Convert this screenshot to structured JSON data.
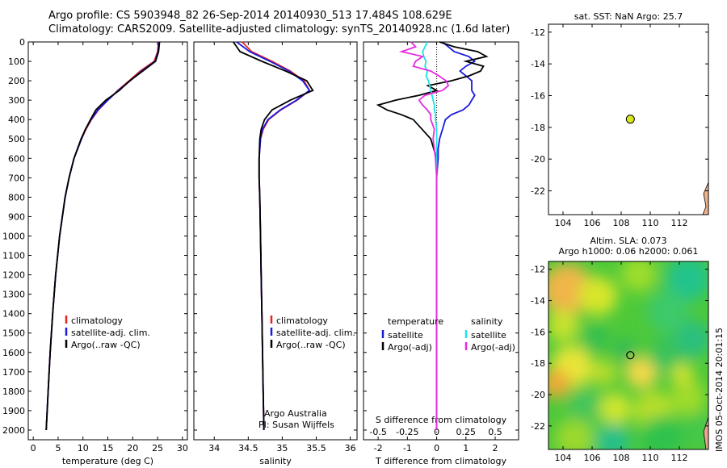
{
  "header": {
    "title_line1": "Argo profile: CS 5903948_82 26-Sep-2014 20140930_513 17.484S 108.629E",
    "title_line2": "Climatology: CARS2009. Satellite-adjusted climatology: synTS_20140928.nc (1.6d later)"
  },
  "footer_stamp": "IMOS 05-Oct-2014 20:01:15",
  "colors": {
    "climatology": "#e8201b",
    "satellite": "#1a1adf",
    "argo": "#000000",
    "satellite_s": "#19e3e8",
    "argo_s": "#e62be0",
    "marker": "#d8e81c"
  },
  "chart_data": [
    {
      "type": "line",
      "xlabel": "temperature (deg C)",
      "ylabel": "",
      "xlim": [
        -1,
        31
      ],
      "ylim": [
        2050,
        0
      ],
      "xticks": [
        0,
        5,
        10,
        15,
        20,
        25,
        30
      ],
      "yticks": [
        0,
        100,
        200,
        300,
        400,
        500,
        600,
        700,
        800,
        900,
        1000,
        1100,
        1200,
        1300,
        1400,
        1500,
        1600,
        1700,
        1800,
        1900,
        2000
      ],
      "legend": [
        "climatology",
        "satellite-adj. clim.",
        "Argo(..raw -QC)"
      ],
      "y": [
        0,
        50,
        100,
        150,
        200,
        250,
        300,
        350,
        400,
        450,
        500,
        600,
        700,
        800,
        1000,
        1200,
        1400,
        1600,
        1800,
        2000
      ],
      "series": [
        {
          "name": "climatology",
          "values": [
            25.2,
            25.0,
            24.3,
            21.5,
            19.3,
            17.0,
            15.0,
            13.1,
            11.7,
            10.6,
            9.7,
            8.2,
            7.2,
            6.4,
            5.3,
            4.5,
            3.9,
            3.4,
            3.0,
            2.6
          ]
        },
        {
          "name": "satellite-adj. clim.",
          "values": [
            25.3,
            25.1,
            24.5,
            21.8,
            19.5,
            17.1,
            15.0,
            13.0,
            11.6,
            10.5,
            9.7,
            8.2,
            7.2,
            6.4,
            5.3,
            4.5,
            3.9,
            3.4,
            3.0,
            2.6
          ]
        },
        {
          "name": "Argo(..raw -QC)",
          "values": [
            25.4,
            25.2,
            24.6,
            22.0,
            19.4,
            17.3,
            14.6,
            12.6,
            11.5,
            10.5,
            9.6,
            8.2,
            7.2,
            6.4,
            5.3,
            4.5,
            3.9,
            3.4,
            3.0,
            2.6
          ]
        }
      ]
    },
    {
      "type": "line",
      "xlabel": "salinity",
      "xlim": [
        33.7,
        36.1
      ],
      "ylim": [
        2050,
        0
      ],
      "xticks": [
        34,
        34.5,
        35,
        35.5,
        36
      ],
      "legend": [
        "climatology",
        "satellite-adj. clim.",
        "Argo(..raw -QC)"
      ],
      "annotations": [
        "Argo Australia",
        "PI: Susan Wijffels"
      ],
      "y": [
        0,
        50,
        100,
        150,
        200,
        250,
        300,
        350,
        400,
        450,
        500,
        600,
        700,
        800,
        1000,
        1200,
        1400,
        1600,
        1800,
        2000
      ],
      "series": [
        {
          "name": "climatology",
          "values": [
            34.41,
            34.55,
            34.85,
            35.12,
            35.32,
            35.4,
            35.22,
            34.98,
            34.8,
            34.72,
            34.68,
            34.66,
            34.66,
            34.67,
            34.68,
            34.69,
            34.7,
            34.71,
            34.72,
            34.73
          ]
        },
        {
          "name": "satellite-adj. clim.",
          "values": [
            34.33,
            34.52,
            34.82,
            35.1,
            35.3,
            35.4,
            35.21,
            34.97,
            34.79,
            34.71,
            34.68,
            34.66,
            34.66,
            34.67,
            34.68,
            34.69,
            34.7,
            34.71,
            34.72,
            34.73
          ]
        },
        {
          "name": "Argo(..raw -QC)",
          "values": [
            34.28,
            34.38,
            34.7,
            35.05,
            35.36,
            35.45,
            35.12,
            34.85,
            34.74,
            34.69,
            34.67,
            34.66,
            34.66,
            34.67,
            34.68,
            34.69,
            34.7,
            34.71,
            34.72,
            34.73
          ]
        }
      ]
    },
    {
      "type": "line",
      "xlabel": "T difference from climatology",
      "xlabel_top": "S difference from climatology",
      "xlim": [
        -2.5,
        2.8
      ],
      "ylim": [
        2050,
        0
      ],
      "xticks": [
        -2,
        -1,
        0,
        1,
        2
      ],
      "xticks_top": [
        -0.5,
        -0.25,
        0,
        0.25,
        0.5
      ],
      "legend_groups": [
        {
          "title": "temperature",
          "items": [
            "satellite",
            "Argo(-adj)"
          ]
        },
        {
          "title": "salinity",
          "items": [
            "satellite",
            "Argo(-adj)"
          ]
        }
      ],
      "y": [
        0,
        25,
        50,
        75,
        100,
        125,
        150,
        175,
        200,
        225,
        250,
        275,
        300,
        325,
        350,
        375,
        400,
        450,
        500,
        550,
        600,
        700,
        800,
        900,
        1000,
        1200,
        1400,
        1600,
        1800,
        2000
      ],
      "series": [
        {
          "name": "temperature satellite",
          "values": [
            0.2,
            0.4,
            0.6,
            1.1,
            1.3,
            1.0,
            0.8,
            1.0,
            1.2,
            1.2,
            1.2,
            1.3,
            1.2,
            1.1,
            0.9,
            0.5,
            0.3,
            0.2,
            0.1,
            0.05,
            0.05,
            0.0,
            0.0,
            0.0,
            0.0,
            0.0,
            0.0,
            0.0,
            0.0,
            0.0
          ]
        },
        {
          "name": "temperature Argo(-adj)",
          "values": [
            0.1,
            0.6,
            1.4,
            1.7,
            1.0,
            1.6,
            1.5,
            1.1,
            0.5,
            -0.3,
            0.0,
            -0.6,
            -1.4,
            -2.0,
            -1.7,
            -1.2,
            -0.8,
            -0.5,
            -0.2,
            -0.1,
            0.0,
            0.0,
            0.0,
            0.0,
            0.0,
            0.0,
            0.0,
            0.0,
            0.0,
            0.0
          ]
        },
        {
          "name": "salinity satellite",
          "values": [
            -0.08,
            -0.1,
            -0.12,
            -0.11,
            -0.09,
            -0.1,
            -0.08,
            -0.09,
            -0.07,
            -0.06,
            -0.05,
            -0.04,
            -0.03,
            -0.02,
            -0.02,
            -0.01,
            -0.01,
            0.0,
            0.0,
            0.0,
            0.0,
            0.0,
            0.0,
            0.0,
            0.0,
            0.0,
            0.0,
            0.0,
            0.0,
            0.0
          ]
        },
        {
          "name": "salinity Argo(-adj)",
          "values": [
            -0.22,
            -0.18,
            -0.3,
            -0.12,
            -0.18,
            -0.2,
            -0.05,
            0.02,
            0.08,
            0.1,
            0.05,
            -0.1,
            -0.15,
            -0.12,
            -0.08,
            -0.05,
            -0.05,
            -0.02,
            -0.03,
            -0.02,
            -0.01,
            0.0,
            0.0,
            0.0,
            0.0,
            0.0,
            0.0,
            0.0,
            0.0,
            0.0
          ]
        }
      ]
    },
    {
      "type": "scatter",
      "title": "sat. SST: NaN Argo: 25.7",
      "xlim": [
        103,
        114
      ],
      "ylim": [
        -23.5,
        -11.5
      ],
      "xticks": [
        104,
        106,
        108,
        110,
        112
      ],
      "yticks": [
        -12,
        -14,
        -16,
        -18,
        -20,
        -22
      ],
      "x": [
        108.629
      ],
      "y": [
        -17.484
      ]
    },
    {
      "type": "heatmap",
      "title_line1": "Altim. SLA: 0.073",
      "title_line2": "Argo h1000: 0.06 h2000: 0.061",
      "xlim": [
        103,
        114
      ],
      "ylim": [
        -23.5,
        -11.5
      ],
      "xticks": [
        104,
        106,
        108,
        110,
        112
      ],
      "yticks": [
        -12,
        -14,
        -16,
        -18,
        -20,
        -22
      ],
      "marker": {
        "x": 108.629,
        "y": -17.484
      }
    }
  ]
}
